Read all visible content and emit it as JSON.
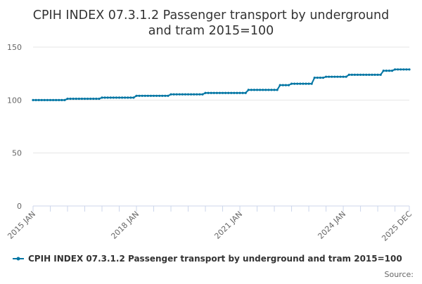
{
  "chart_data": {
    "type": "line",
    "title_lines": [
      "CPIH INDEX 07.3.1.2 Passenger transport by underground",
      "and tram 2015=100"
    ],
    "xlabel": "",
    "ylabel": "",
    "ylim": [
      0,
      150
    ],
    "yticks": [
      0,
      50,
      100,
      150
    ],
    "xlim": [
      "2015-01",
      "2025-12"
    ],
    "xtick_labels": [
      {
        "date": "2015-01",
        "label": "2015 JAN"
      },
      {
        "date": "2018-01",
        "label": "2018 JAN"
      },
      {
        "date": "2021-01",
        "label": "2021 JAN"
      },
      {
        "date": "2024-01",
        "label": "2024 JAN"
      },
      {
        "date": "2025-12",
        "label": "2025 DEC"
      }
    ],
    "grid": "horizontal",
    "legend_position": "bottom",
    "series": [
      {
        "name": "CPIH INDEX 07.3.1.2 Passenger transport by underground and tram 2015=100",
        "color": "#0075a3",
        "annual_levels": [
          {
            "from": "2015-01",
            "to": "2015-12",
            "value": 100.0
          },
          {
            "from": "2016-01",
            "to": "2016-12",
            "value": 101.2
          },
          {
            "from": "2017-01",
            "to": "2017-12",
            "value": 102.3
          },
          {
            "from": "2018-01",
            "to": "2018-12",
            "value": 104.0
          },
          {
            "from": "2019-01",
            "to": "2019-12",
            "value": 105.4
          },
          {
            "from": "2020-01",
            "to": "2020-12",
            "value": 106.7
          },
          {
            "from": "2021-01",
            "to": "2021-03",
            "value": 106.7
          },
          {
            "from": "2021-04",
            "to": "2022-02",
            "value": 109.6
          },
          {
            "from": "2022-03",
            "to": "2022-06",
            "value": 114.1
          },
          {
            "from": "2022-07",
            "to": "2023-02",
            "value": 115.4
          },
          {
            "from": "2023-03",
            "to": "2023-06",
            "value": 121.1
          },
          {
            "from": "2023-07",
            "to": "2024-02",
            "value": 122.0
          },
          {
            "from": "2024-03",
            "to": "2025-02",
            "value": 123.9
          },
          {
            "from": "2025-03",
            "to": "2025-06",
            "value": 127.7
          },
          {
            "from": "2025-07",
            "to": "2025-12",
            "value": 128.9
          }
        ]
      }
    ]
  },
  "source_label": "Source:"
}
